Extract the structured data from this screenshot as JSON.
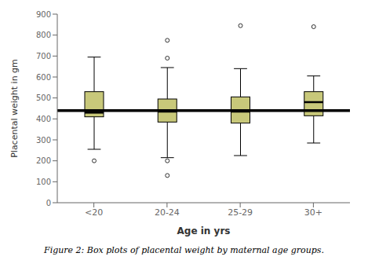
{
  "chart_data": {
    "type": "box",
    "categories": [
      "<20",
      "20-24",
      "25-29",
      "30+"
    ],
    "boxes": [
      {
        "q1": 410,
        "median": 430,
        "q3": 530,
        "whisker_low": 255,
        "whisker_high": 695,
        "fliers": [
          200
        ]
      },
      {
        "q1": 385,
        "median": 435,
        "q3": 495,
        "whisker_low": 215,
        "whisker_high": 645,
        "fliers": [
          200,
          130,
          690,
          775
        ]
      },
      {
        "q1": 380,
        "median": 435,
        "q3": 505,
        "whisker_low": 225,
        "whisker_high": 640,
        "fliers": [
          845
        ]
      },
      {
        "q1": 415,
        "median": 480,
        "q3": 530,
        "whisker_low": 285,
        "whisker_high": 605,
        "fliers": [
          840
        ]
      }
    ],
    "color": "#c8c87a",
    "reference_line": {
      "y": 440,
      "color": "#000000"
    },
    "xlabel": "Age in yrs",
    "ylabel": "Placental weight in gm",
    "ylim": [
      0,
      900
    ],
    "yticks": [
      0,
      100,
      200,
      300,
      400,
      500,
      600,
      700,
      800,
      900
    ],
    "grid": false,
    "caption": "Figure 2: Box plots of placental weight by maternal age groups."
  }
}
